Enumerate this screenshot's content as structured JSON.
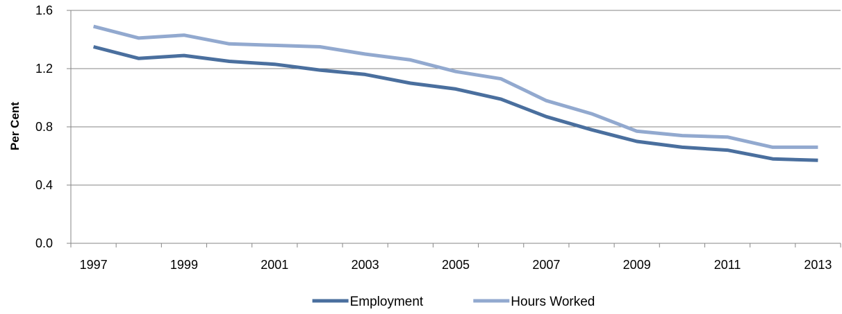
{
  "chart_data": {
    "type": "line",
    "title": "",
    "xlabel": "",
    "ylabel": "Per Cent",
    "ylim": [
      0.0,
      1.6
    ],
    "yticks": [
      "0.0",
      "0.4",
      "0.8",
      "1.2",
      "1.6"
    ],
    "x": [
      1997,
      1998,
      1999,
      2000,
      2001,
      2002,
      2003,
      2004,
      2005,
      2006,
      2007,
      2008,
      2009,
      2010,
      2011,
      2012,
      2013
    ],
    "xtick_labels": [
      "1997",
      "1999",
      "2001",
      "2003",
      "2005",
      "2007",
      "2009",
      "2011",
      "2013"
    ],
    "grid": "horizontal",
    "legend_position": "bottom",
    "series": [
      {
        "name": "Employment",
        "color": "#4a6f9e",
        "values": [
          1.35,
          1.27,
          1.29,
          1.25,
          1.23,
          1.19,
          1.16,
          1.1,
          1.06,
          0.99,
          0.87,
          0.78,
          0.7,
          0.66,
          0.64,
          0.58,
          0.57
        ]
      },
      {
        "name": "Hours Worked",
        "color": "#92a9cf",
        "values": [
          1.49,
          1.41,
          1.43,
          1.37,
          1.36,
          1.35,
          1.3,
          1.26,
          1.18,
          1.13,
          0.98,
          0.89,
          0.77,
          0.74,
          0.73,
          0.66,
          0.66
        ]
      }
    ]
  }
}
